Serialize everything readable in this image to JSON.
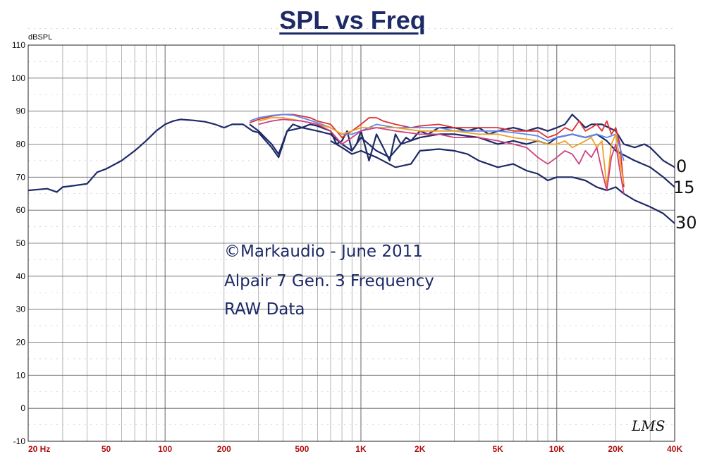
{
  "chart_data": {
    "type": "line",
    "title": "SPL vs Freq",
    "ylabel": "dBSPL",
    "xscale": "log",
    "xlim": [
      20,
      40000
    ],
    "ylim": [
      -10,
      110
    ],
    "grid": true,
    "x_tick_labels": [
      {
        "value": 20,
        "label": "20 Hz"
      },
      {
        "value": 50,
        "label": "50"
      },
      {
        "value": 100,
        "label": "100"
      },
      {
        "value": 200,
        "label": "200"
      },
      {
        "value": 500,
        "label": "500"
      },
      {
        "value": 1000,
        "label": "1K"
      },
      {
        "value": 2000,
        "label": "2K"
      },
      {
        "value": 5000,
        "label": "5K"
      },
      {
        "value": 10000,
        "label": "10K"
      },
      {
        "value": 20000,
        "label": "20K"
      },
      {
        "value": 40000,
        "label": "40K"
      }
    ],
    "y_ticks": [
      -10,
      0,
      10,
      20,
      30,
      40,
      50,
      60,
      70,
      80,
      90,
      100,
      110
    ],
    "annotations": [
      "©Markaudio - June 2011",
      "Alpair 7 Gen. 3 Frequency",
      "RAW Data"
    ],
    "end_labels": [
      {
        "label": "0",
        "y": 73
      },
      {
        "label": "15",
        "y": 67
      },
      {
        "label": "30",
        "y": 57
      }
    ],
    "logo": "LMS",
    "series": [
      {
        "color": "#1d2a66",
        "points": [
          [
            20,
            66
          ],
          [
            25,
            66.5
          ],
          [
            28,
            65.5
          ],
          [
            30,
            67
          ],
          [
            35,
            67.5
          ],
          [
            40,
            68
          ],
          [
            45,
            71.5
          ],
          [
            50,
            72.5
          ],
          [
            60,
            75
          ],
          [
            70,
            78
          ],
          [
            80,
            81
          ],
          [
            90,
            84
          ],
          [
            100,
            86
          ],
          [
            110,
            87
          ],
          [
            120,
            87.5
          ],
          [
            140,
            87.2
          ],
          [
            160,
            86.8
          ],
          [
            180,
            86
          ],
          [
            200,
            85
          ],
          [
            220,
            86
          ],
          [
            250,
            86
          ],
          [
            280,
            84
          ],
          [
            300,
            83.5
          ],
          [
            350,
            79
          ],
          [
            380,
            76
          ],
          [
            400,
            80
          ],
          [
            420,
            84
          ],
          [
            450,
            86
          ],
          [
            500,
            85
          ],
          [
            550,
            86
          ],
          [
            600,
            85.5
          ],
          [
            700,
            84
          ],
          [
            750,
            80
          ],
          [
            800,
            81
          ],
          [
            850,
            84
          ],
          [
            900,
            78
          ],
          [
            950,
            80
          ],
          [
            1000,
            84
          ],
          [
            1100,
            75
          ],
          [
            1200,
            83
          ],
          [
            1300,
            79
          ],
          [
            1400,
            75
          ],
          [
            1500,
            83
          ],
          [
            1600,
            80
          ],
          [
            1700,
            82
          ],
          [
            1800,
            81
          ],
          [
            2000,
            84
          ],
          [
            2200,
            83
          ],
          [
            2500,
            85
          ],
          [
            3000,
            85
          ],
          [
            3500,
            84
          ],
          [
            4000,
            85
          ],
          [
            4500,
            83
          ],
          [
            5000,
            84
          ],
          [
            6000,
            85
          ],
          [
            7000,
            84
          ],
          [
            8000,
            85
          ],
          [
            9000,
            84
          ],
          [
            10000,
            85
          ],
          [
            11000,
            86
          ],
          [
            12000,
            89
          ],
          [
            13000,
            87
          ],
          [
            14000,
            85
          ],
          [
            15000,
            86
          ],
          [
            17000,
            86
          ],
          [
            20000,
            84
          ],
          [
            22000,
            80
          ],
          [
            25000,
            79
          ],
          [
            28000,
            80
          ],
          [
            30000,
            79
          ],
          [
            35000,
            75
          ],
          [
            40000,
            73
          ]
        ]
      },
      {
        "color": "#1d2a66",
        "points": [
          [
            270,
            86
          ],
          [
            300,
            84
          ],
          [
            350,
            80
          ],
          [
            380,
            77
          ],
          [
            420,
            84
          ],
          [
            500,
            85
          ],
          [
            600,
            84
          ],
          [
            700,
            83
          ],
          [
            800,
            80
          ],
          [
            900,
            78
          ],
          [
            1000,
            82
          ],
          [
            1200,
            78
          ],
          [
            1400,
            76
          ],
          [
            1600,
            80
          ],
          [
            2000,
            82
          ],
          [
            2500,
            83
          ],
          [
            3000,
            83
          ],
          [
            4000,
            82
          ],
          [
            5000,
            80
          ],
          [
            6000,
            81
          ],
          [
            7000,
            80
          ],
          [
            8000,
            81
          ],
          [
            9000,
            80
          ],
          [
            10000,
            82
          ],
          [
            12000,
            83
          ],
          [
            14000,
            82
          ],
          [
            16000,
            83
          ],
          [
            18000,
            81
          ],
          [
            20000,
            78
          ],
          [
            25000,
            75
          ],
          [
            30000,
            73
          ],
          [
            35000,
            70
          ],
          [
            40000,
            67
          ]
        ]
      },
      {
        "color": "#1d2a66",
        "points": [
          [
            700,
            81
          ],
          [
            800,
            79
          ],
          [
            900,
            77
          ],
          [
            1000,
            78
          ],
          [
            1200,
            76
          ],
          [
            1500,
            73
          ],
          [
            1800,
            74
          ],
          [
            2000,
            78
          ],
          [
            2500,
            78.5
          ],
          [
            3000,
            78
          ],
          [
            3500,
            77
          ],
          [
            4000,
            75
          ],
          [
            5000,
            73
          ],
          [
            6000,
            74
          ],
          [
            7000,
            72
          ],
          [
            8000,
            71
          ],
          [
            9000,
            69
          ],
          [
            10000,
            70
          ],
          [
            12000,
            70
          ],
          [
            14000,
            69
          ],
          [
            16000,
            67
          ],
          [
            18000,
            66
          ],
          [
            20000,
            67
          ],
          [
            22000,
            65
          ],
          [
            25000,
            63
          ],
          [
            30000,
            61
          ],
          [
            35000,
            59
          ],
          [
            40000,
            56
          ]
        ]
      },
      {
        "color": "#e03030",
        "points": [
          [
            270,
            86.5
          ],
          [
            300,
            87.5
          ],
          [
            350,
            88.5
          ],
          [
            400,
            89
          ],
          [
            450,
            89
          ],
          [
            500,
            88.5
          ],
          [
            550,
            88
          ],
          [
            600,
            87
          ],
          [
            700,
            86
          ],
          [
            750,
            84
          ],
          [
            800,
            82
          ],
          [
            900,
            84
          ],
          [
            1000,
            86
          ],
          [
            1100,
            88
          ],
          [
            1200,
            88
          ],
          [
            1300,
            87
          ],
          [
            1500,
            86
          ],
          [
            1800,
            85
          ],
          [
            2000,
            85.5
          ],
          [
            2500,
            86
          ],
          [
            3000,
            85
          ],
          [
            4000,
            85
          ],
          [
            5000,
            85
          ],
          [
            6000,
            84
          ],
          [
            7000,
            84
          ],
          [
            8000,
            84
          ],
          [
            9000,
            82
          ],
          [
            10000,
            83
          ],
          [
            11000,
            85
          ],
          [
            12000,
            84
          ],
          [
            13000,
            87
          ],
          [
            14000,
            84
          ],
          [
            15000,
            85
          ],
          [
            16000,
            86
          ],
          [
            17000,
            84
          ],
          [
            18000,
            87
          ],
          [
            19000,
            83
          ],
          [
            20000,
            85
          ],
          [
            21000,
            80
          ],
          [
            22000,
            67
          ]
        ]
      },
      {
        "color": "#5a8af0",
        "points": [
          [
            270,
            87
          ],
          [
            300,
            88
          ],
          [
            350,
            88.7
          ],
          [
            400,
            89
          ],
          [
            450,
            88.8
          ],
          [
            500,
            88
          ],
          [
            600,
            86.5
          ],
          [
            700,
            85
          ],
          [
            800,
            83
          ],
          [
            900,
            83
          ],
          [
            1000,
            84
          ],
          [
            1200,
            86
          ],
          [
            1500,
            85
          ],
          [
            2000,
            85
          ],
          [
            2500,
            85
          ],
          [
            3000,
            84
          ],
          [
            4000,
            84
          ],
          [
            5000,
            84
          ],
          [
            6000,
            83.5
          ],
          [
            7000,
            83
          ],
          [
            8000,
            82.5
          ],
          [
            9000,
            81
          ],
          [
            10000,
            82
          ],
          [
            12000,
            83
          ],
          [
            14000,
            82
          ],
          [
            16000,
            83
          ],
          [
            18000,
            82
          ],
          [
            20000,
            83
          ],
          [
            21000,
            79
          ],
          [
            22000,
            75
          ]
        ]
      },
      {
        "color": "#f0a020",
        "points": [
          [
            300,
            87
          ],
          [
            350,
            88
          ],
          [
            400,
            88
          ],
          [
            500,
            87
          ],
          [
            600,
            86
          ],
          [
            700,
            85
          ],
          [
            800,
            83
          ],
          [
            900,
            84
          ],
          [
            1000,
            85
          ],
          [
            1200,
            85
          ],
          [
            1500,
            85
          ],
          [
            2000,
            84
          ],
          [
            2500,
            84
          ],
          [
            3000,
            84
          ],
          [
            4000,
            83
          ],
          [
            5000,
            83
          ],
          [
            6000,
            82
          ],
          [
            7000,
            81.5
          ],
          [
            8000,
            81
          ],
          [
            9000,
            80
          ],
          [
            10000,
            80
          ],
          [
            11000,
            81
          ],
          [
            12000,
            79
          ],
          [
            13000,
            80
          ],
          [
            14000,
            81
          ],
          [
            15000,
            82
          ],
          [
            16000,
            79
          ],
          [
            17000,
            81
          ],
          [
            18000,
            67
          ],
          [
            19000,
            80
          ],
          [
            20000,
            83
          ],
          [
            21000,
            75
          ],
          [
            22000,
            68
          ]
        ]
      },
      {
        "color": "#d04080",
        "points": [
          [
            300,
            86
          ],
          [
            350,
            87
          ],
          [
            400,
            87.5
          ],
          [
            500,
            87
          ],
          [
            600,
            86
          ],
          [
            700,
            84
          ],
          [
            800,
            80
          ],
          [
            900,
            82
          ],
          [
            1000,
            84
          ],
          [
            1200,
            85
          ],
          [
            1500,
            84
          ],
          [
            2000,
            83
          ],
          [
            2500,
            83
          ],
          [
            3000,
            82
          ],
          [
            4000,
            82
          ],
          [
            5000,
            81
          ],
          [
            6000,
            80
          ],
          [
            7000,
            79
          ],
          [
            8000,
            76
          ],
          [
            9000,
            74
          ],
          [
            10000,
            76
          ],
          [
            11000,
            78
          ],
          [
            12000,
            77
          ],
          [
            13000,
            74
          ],
          [
            14000,
            78
          ],
          [
            15000,
            76
          ],
          [
            16000,
            79
          ],
          [
            17000,
            72
          ],
          [
            18000,
            66
          ],
          [
            19000,
            76
          ],
          [
            20000,
            80
          ],
          [
            21000,
            72
          ],
          [
            22000,
            65
          ]
        ]
      }
    ]
  }
}
